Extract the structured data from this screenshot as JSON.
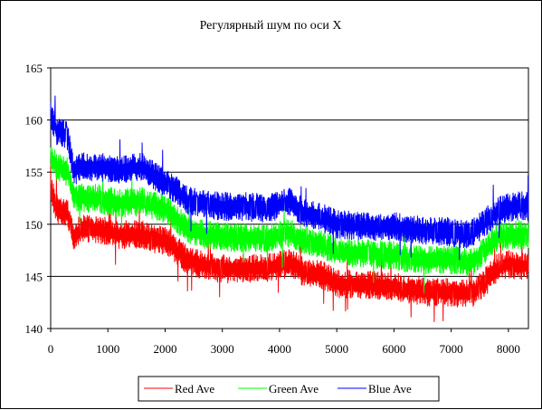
{
  "chart_data": {
    "type": "line",
    "title": "Регулярный шум по оси X",
    "xlabel": "",
    "ylabel": "",
    "xlim": [
      0,
      8350
    ],
    "ylim": [
      140,
      165
    ],
    "x_ticks": [
      0,
      1000,
      2000,
      3000,
      4000,
      5000,
      6000,
      7000,
      8000
    ],
    "y_ticks": [
      140,
      145,
      150,
      155,
      160,
      165
    ],
    "grid": "horizontal",
    "legend_position": "bottom",
    "noise_amplitude": 1.4,
    "series": [
      {
        "name": "Red Ave",
        "color": "#ff0000",
        "x": [
          0,
          100,
          300,
          400,
          500,
          800,
          1200,
          1600,
          1800,
          2000,
          2200,
          2400,
          2700,
          3000,
          3400,
          3800,
          4200,
          4400,
          4800,
          5000,
          5500,
          6000,
          6300,
          6600,
          7000,
          7300,
          7400,
          7600,
          7800,
          8000,
          8200,
          8350
        ],
        "values": [
          153.5,
          151.5,
          151.0,
          148.5,
          149.5,
          149.5,
          149.0,
          149.0,
          148.5,
          148.5,
          147.5,
          146.5,
          146.0,
          145.7,
          145.8,
          145.8,
          146.3,
          145.5,
          145.0,
          144.3,
          144.2,
          144.0,
          143.7,
          143.5,
          143.5,
          143.3,
          143.5,
          144.5,
          145.8,
          146.2,
          146.0,
          146.0
        ]
      },
      {
        "name": "Green Ave",
        "color": "#00ff00",
        "x": [
          0,
          100,
          300,
          400,
          500,
          800,
          1200,
          1600,
          1800,
          2000,
          2200,
          2400,
          2700,
          3000,
          3400,
          3800,
          4200,
          4400,
          4800,
          5000,
          5500,
          6000,
          6300,
          6600,
          7000,
          7300,
          7400,
          7600,
          7800,
          8000,
          8200,
          8350
        ],
        "values": [
          156.5,
          155.5,
          155.0,
          152.5,
          152.5,
          152.5,
          152.0,
          152.2,
          151.8,
          151.5,
          150.5,
          149.5,
          149.0,
          148.8,
          148.7,
          148.7,
          149.2,
          148.5,
          148.0,
          147.3,
          147.2,
          147.0,
          146.7,
          146.6,
          146.6,
          146.3,
          146.5,
          147.5,
          148.7,
          149.0,
          149.0,
          149.0
        ]
      },
      {
        "name": "Blue Ave",
        "color": "#0000ff",
        "x": [
          0,
          100,
          300,
          400,
          500,
          800,
          1200,
          1600,
          1800,
          2000,
          2200,
          2400,
          2700,
          3000,
          3400,
          3800,
          4200,
          4400,
          4800,
          5000,
          5500,
          6000,
          6300,
          6600,
          7000,
          7300,
          7400,
          7600,
          7800,
          8000,
          8200,
          8350
        ],
        "values": [
          160.5,
          159.0,
          158.5,
          155.0,
          155.5,
          155.5,
          155.2,
          155.5,
          154.7,
          154.0,
          153.2,
          152.2,
          152.0,
          151.7,
          151.7,
          151.5,
          152.2,
          151.2,
          150.5,
          150.0,
          149.8,
          149.8,
          149.5,
          149.3,
          149.3,
          149.0,
          149.3,
          150.2,
          151.2,
          151.6,
          151.8,
          151.7
        ]
      }
    ]
  }
}
